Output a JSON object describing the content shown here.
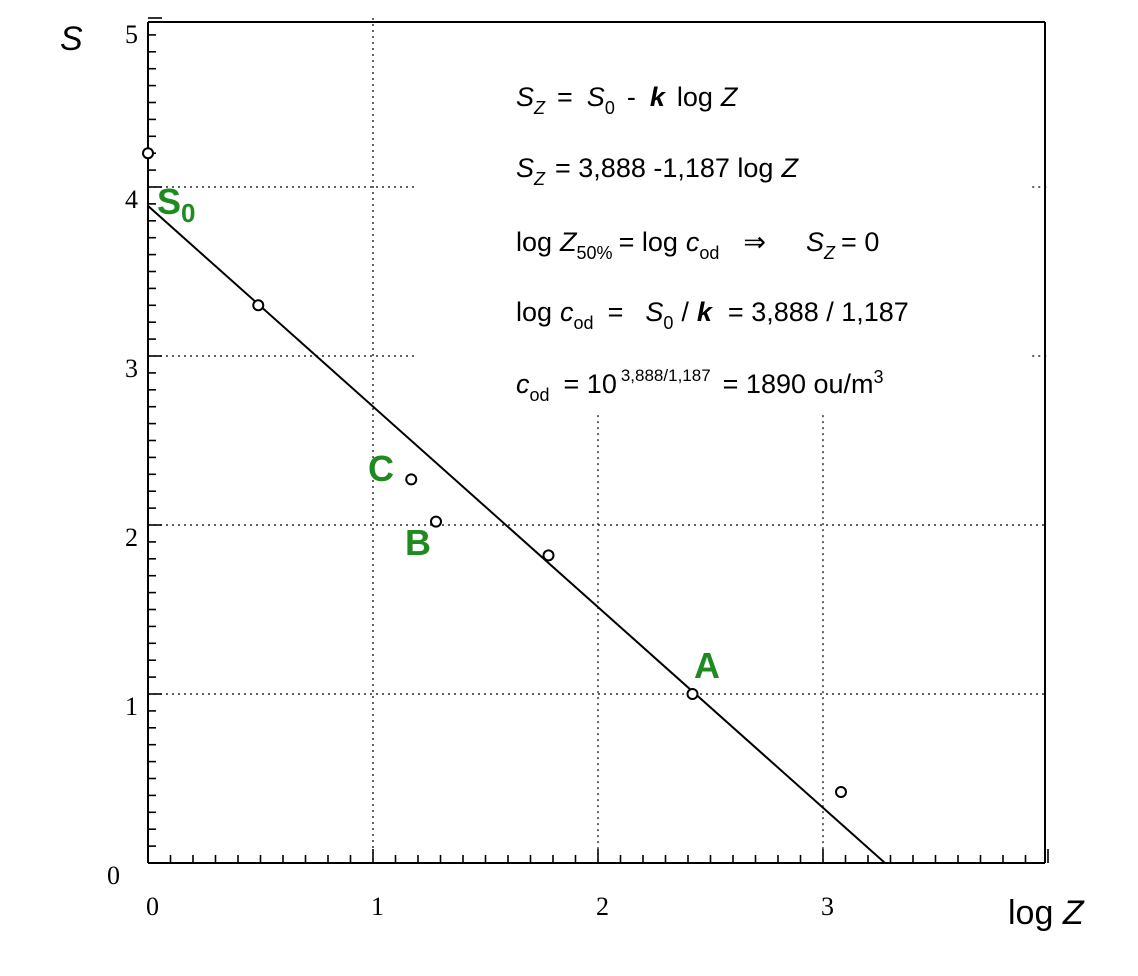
{
  "chart_data": {
    "type": "scatter",
    "title": "",
    "xlabel": "log Z",
    "ylabel": "S",
    "xlim": [
      0,
      4
    ],
    "ylim": [
      0,
      5
    ],
    "x_ticks": [
      "0",
      "1",
      "2",
      "3"
    ],
    "y_ticks": [
      "0",
      "1",
      "2",
      "3",
      "4",
      "5"
    ],
    "grid": "dotted",
    "points": [
      {
        "x": 0.0,
        "y": 4.2
      },
      {
        "x": 0.49,
        "y": 3.3
      },
      {
        "x": 1.17,
        "y": 2.27
      },
      {
        "x": 1.28,
        "y": 2.02
      },
      {
        "x": 1.78,
        "y": 1.82
      },
      {
        "x": 2.42,
        "y": 1.0
      },
      {
        "x": 3.08,
        "y": 0.42
      }
    ],
    "fit_line": {
      "intercept": 3.888,
      "slope": -1.187
    },
    "point_labels": [
      {
        "text": "S0",
        "x": 0.0,
        "y": 3.888
      },
      {
        "text": "C",
        "x": 1.17,
        "y": 2.27
      },
      {
        "text": "B",
        "x": 1.28,
        "y": 2.02
      },
      {
        "text": "A",
        "x": 2.42,
        "y": 1.0
      }
    ],
    "equations": [
      "S_Z = S_0 - k log Z",
      "S_Z = 3,888 -1,187 log Z",
      "log Z_50% = log c_od ⇒ S_Z = 0",
      "log c_od = S_0 / k = 3,888 / 1,187",
      "c_od = 10^(3,888/1,187) = 1890 ou/m3"
    ]
  },
  "text": {
    "y_axis_title": "S",
    "x_axis_title": "log Z",
    "y_tick_labels": [
      "0",
      "1",
      "2",
      "3",
      "4",
      "5"
    ],
    "x_tick_labels": [
      "0",
      "1",
      "2",
      "3"
    ],
    "label_s0_main": "S",
    "label_s0_sub": "0",
    "label_a": "A",
    "label_b": "B",
    "label_c": "C",
    "eq1": {
      "sz": "S",
      "sz_sub": "Z",
      "eq": "=",
      "s0": "S",
      "s0_sub": "0",
      "minus": "-",
      "k": "k",
      "log": "log",
      "z": "Z"
    },
    "eq2": {
      "sz": "S",
      "sz_sub": "Z",
      "rest": "= 3,888 -1,187  log",
      "z": "Z"
    },
    "eq3": {
      "log1": "log",
      "z": "Z",
      "z_sub": "50%",
      "mid": "= log",
      "c": "c",
      "c_sub": "od",
      "arrow": "⇒",
      "sz": "S",
      "sz_sub": "Z",
      "end": "= 0"
    },
    "eq4": {
      "log1": "log",
      "c": "c",
      "c_sub": "od",
      "eq": "=",
      "s0": "S",
      "s0_sub": "0",
      "slash": "/",
      "k": "k",
      "rest": "=  3,888 / 1,187"
    },
    "eq5": {
      "c": "c",
      "c_sub": "od",
      "eq": "=  10",
      "exp": "3,888/1,187",
      "rest": "=  1890 ou/m",
      "sup3": "3"
    }
  },
  "colors": {
    "label_green": "#1f8a1f",
    "axis": "#000000",
    "grid": "#000000"
  }
}
